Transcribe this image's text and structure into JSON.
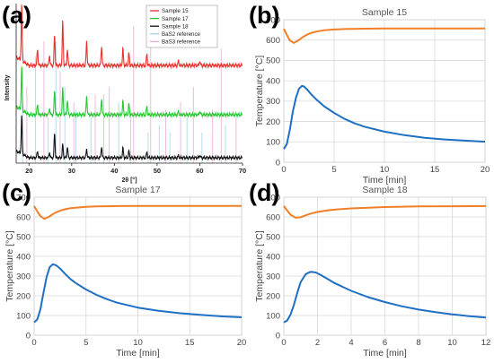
{
  "panels": {
    "a": "(a)",
    "b": "(b)",
    "c": "(c)",
    "d": "(d)"
  },
  "chart_data": [
    {
      "panel": "(a)",
      "type": "line",
      "title": "",
      "xlabel": "2θ [°]",
      "ylabel": "Intensity",
      "xlim": [
        17,
        70
      ],
      "xticks": [
        20,
        30,
        40,
        50,
        60,
        70
      ],
      "legend_placement": "top-right",
      "colors": {
        "Sample 15": "#e8312c",
        "Sample 17": "#27c832",
        "Sample 18": "#111111",
        "BaS2 reference": "#9fd0e6",
        "BaS3 reference": "#e4a8d4"
      },
      "series": [
        {
          "name": "Sample 15",
          "offset": 2.0,
          "peaks": [
            [
              18.3,
              1.0
            ],
            [
              22.0,
              0.3
            ],
            [
              24.8,
              0.18
            ],
            [
              26.0,
              0.55
            ],
            [
              27.9,
              0.8
            ],
            [
              29.0,
              0.3
            ],
            [
              33.5,
              0.45
            ],
            [
              37.0,
              0.35
            ],
            [
              42.0,
              0.3
            ],
            [
              43.4,
              0.22
            ],
            [
              47.6,
              0.2
            ],
            [
              55.0,
              0.08
            ],
            [
              60.0,
              0.08
            ]
          ]
        },
        {
          "name": "Sample 17",
          "offset": 1.0,
          "peaks": [
            [
              18.3,
              0.8
            ],
            [
              22.0,
              0.2
            ],
            [
              24.8,
              0.12
            ],
            [
              26.0,
              0.45
            ],
            [
              27.9,
              0.5
            ],
            [
              29.0,
              0.28
            ],
            [
              33.5,
              0.35
            ],
            [
              37.0,
              0.3
            ],
            [
              42.0,
              0.25
            ],
            [
              43.4,
              0.2
            ],
            [
              47.6,
              0.15
            ],
            [
              55.0,
              0.06
            ],
            [
              60.0,
              0.07
            ]
          ]
        },
        {
          "name": "Sample 18",
          "offset": 0.0,
          "peaks": [
            [
              18.3,
              0.85
            ],
            [
              22.0,
              0.15
            ],
            [
              24.8,
              0.12
            ],
            [
              26.0,
              0.55
            ],
            [
              27.9,
              0.3
            ],
            [
              29.0,
              0.25
            ],
            [
              33.5,
              0.2
            ],
            [
              37.0,
              0.25
            ],
            [
              42.0,
              0.22
            ],
            [
              43.4,
              0.15
            ],
            [
              47.6,
              0.12
            ],
            [
              55.0,
              0.05
            ],
            [
              60.0,
              0.06
            ]
          ]
        },
        {
          "name": "BaS2 reference",
          "sticks": [
            [
              18.5,
              0.4
            ],
            [
              21.5,
              0.7
            ],
            [
              24.5,
              0.3
            ],
            [
              26.3,
              0.8
            ],
            [
              28.4,
              0.5
            ],
            [
              31.0,
              0.35
            ],
            [
              34.5,
              0.3
            ],
            [
              37.5,
              0.45
            ],
            [
              41.0,
              0.4
            ],
            [
              43.8,
              0.35
            ],
            [
              47.9,
              0.2
            ],
            [
              50.5,
              0.25
            ],
            [
              53.0,
              0.2
            ],
            [
              57.0,
              0.3
            ],
            [
              60.5,
              0.2
            ],
            [
              66.0,
              0.25
            ]
          ]
        },
        {
          "name": "BaS3 reference",
          "sticks": [
            [
              19.5,
              0.5
            ],
            [
              23.5,
              0.8
            ],
            [
              27.3,
              0.6
            ],
            [
              30.5,
              0.4
            ],
            [
              35.5,
              0.45
            ],
            [
              38.8,
              0.5
            ],
            [
              44.5,
              0.9
            ],
            [
              48.5,
              0.85
            ],
            [
              52.0,
              0.35
            ],
            [
              55.5,
              0.4
            ],
            [
              58.5,
              0.5
            ],
            [
              63.0,
              0.35
            ],
            [
              65.0,
              0.75
            ],
            [
              68.5,
              0.3
            ]
          ]
        }
      ]
    },
    {
      "panel": "(b)",
      "type": "line",
      "title": "Sample 15",
      "xlabel": "Time [min]",
      "ylabel": "Temperature [°C]",
      "xlim": [
        0,
        20
      ],
      "ylim": [
        0,
        700
      ],
      "xticks": [
        0,
        5,
        10,
        15,
        20
      ],
      "yticks": [
        0,
        100,
        200,
        300,
        400,
        500,
        600,
        700
      ],
      "grid": true,
      "series": [
        {
          "color": "#f07f27",
          "x": [
            0,
            0.3,
            0.6,
            1.0,
            1.4,
            1.8,
            2.2,
            2.6,
            3.0,
            3.5,
            4,
            5,
            6,
            7,
            8,
            10,
            12,
            14,
            16,
            18,
            20
          ],
          "y": [
            655,
            625,
            598,
            586,
            597,
            612,
            624,
            633,
            639,
            644,
            648,
            652,
            654,
            655,
            656,
            657,
            657,
            657,
            657,
            657,
            657
          ]
        },
        {
          "color": "#1f6fc4",
          "x": [
            0,
            0.3,
            0.6,
            0.9,
            1.2,
            1.5,
            1.8,
            2.0,
            2.3,
            2.7,
            3.2,
            4,
            5,
            6,
            7,
            8,
            10,
            12,
            14,
            16,
            18,
            20
          ],
          "y": [
            65,
            90,
            160,
            250,
            315,
            360,
            375,
            372,
            358,
            335,
            310,
            275,
            242,
            214,
            192,
            175,
            150,
            133,
            120,
            112,
            106,
            101
          ]
        }
      ]
    },
    {
      "panel": "(c)",
      "type": "line",
      "title": "Sample 17",
      "xlabel": "Time [min]",
      "ylabel": "Temperature [°C]",
      "xlim": [
        0,
        20
      ],
      "ylim": [
        0,
        700
      ],
      "xticks": [
        0,
        5,
        10,
        15,
        20
      ],
      "yticks": [
        0,
        100,
        200,
        300,
        400,
        500,
        600,
        700
      ],
      "grid": true,
      "series": [
        {
          "color": "#f07f27",
          "x": [
            0,
            0.3,
            0.6,
            1.0,
            1.4,
            1.8,
            2.2,
            2.6,
            3.0,
            3.5,
            4,
            5,
            6,
            7,
            8,
            10,
            12,
            14,
            16,
            18,
            20
          ],
          "y": [
            655,
            628,
            604,
            590,
            600,
            614,
            625,
            633,
            639,
            644,
            647,
            651,
            653,
            654,
            655,
            656,
            656,
            656,
            656,
            656,
            656
          ]
        },
        {
          "color": "#1f6fc4",
          "x": [
            0,
            0.3,
            0.6,
            0.9,
            1.2,
            1.5,
            1.8,
            2.1,
            2.5,
            3.0,
            3.5,
            4,
            5,
            6,
            7,
            8,
            10,
            12,
            14,
            16,
            18,
            20
          ],
          "y": [
            65,
            80,
            130,
            215,
            295,
            345,
            360,
            355,
            338,
            310,
            285,
            265,
            232,
            205,
            183,
            165,
            140,
            124,
            112,
            103,
            96,
            91
          ]
        }
      ]
    },
    {
      "panel": "(d)",
      "type": "line",
      "title": "Sample 18",
      "xlabel": "Time [min]",
      "ylabel": "Temperature [°C]",
      "xlim": [
        0,
        12
      ],
      "ylim": [
        0,
        700
      ],
      "xticks": [
        0,
        2,
        4,
        6,
        8,
        10,
        12
      ],
      "yticks": [
        0,
        100,
        200,
        300,
        400,
        500,
        600,
        700
      ],
      "grid": true,
      "series": [
        {
          "color": "#f07f27",
          "x": [
            0,
            0.2,
            0.4,
            0.7,
            1.0,
            1.3,
            1.6,
            2.0,
            2.5,
            3,
            4,
            5,
            6,
            8,
            10,
            12
          ],
          "y": [
            655,
            632,
            611,
            596,
            598,
            608,
            617,
            625,
            632,
            637,
            643,
            647,
            650,
            653,
            654,
            655
          ]
        },
        {
          "color": "#1f6fc4",
          "x": [
            0,
            0.2,
            0.4,
            0.6,
            0.8,
            1.0,
            1.3,
            1.6,
            1.9,
            2.2,
            2.6,
            3,
            4,
            5,
            6,
            7,
            8,
            9,
            10,
            11,
            12
          ],
          "y": [
            65,
            75,
            105,
            155,
            215,
            270,
            310,
            322,
            318,
            305,
            285,
            265,
            225,
            193,
            168,
            147,
            130,
            117,
            106,
            97,
            90
          ]
        }
      ]
    }
  ]
}
